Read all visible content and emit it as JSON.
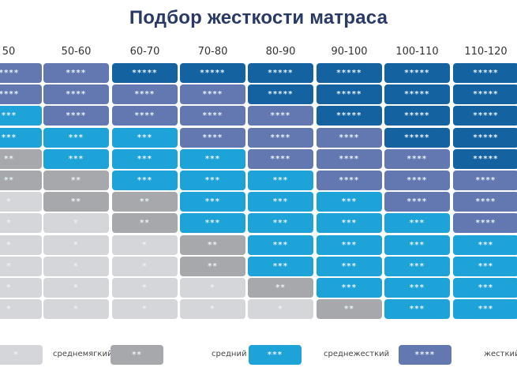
{
  "title": "Подбор жесткости матраса",
  "chart_data": {
    "type": "heatmap",
    "title": "Подбор жесткости матраса",
    "xlabel": "",
    "ylabel": "",
    "categories": [
      "50",
      "50-60",
      "60-70",
      "70-80",
      "80-90",
      "90-100",
      "100-110",
      "110-120"
    ],
    "rows": 12,
    "values_by_column": [
      [
        4,
        4,
        3,
        3,
        2,
        2,
        1,
        1,
        1,
        1,
        1,
        1
      ],
      [
        4,
        4,
        4,
        3,
        3,
        2,
        2,
        1,
        1,
        1,
        1,
        1
      ],
      [
        5,
        4,
        4,
        3,
        3,
        3,
        2,
        2,
        1,
        1,
        1,
        1
      ],
      [
        5,
        4,
        4,
        4,
        3,
        3,
        3,
        3,
        2,
        2,
        1,
        1
      ],
      [
        5,
        5,
        4,
        4,
        4,
        3,
        3,
        3,
        3,
        3,
        2,
        1
      ],
      [
        5,
        5,
        5,
        4,
        4,
        4,
        3,
        3,
        3,
        3,
        3,
        2
      ],
      [
        5,
        5,
        5,
        5,
        4,
        4,
        4,
        3,
        3,
        3,
        3,
        3
      ],
      [
        5,
        5,
        5,
        5,
        5,
        4,
        4,
        4,
        3,
        3,
        3,
        3
      ]
    ],
    "legend": [
      {
        "level": 1,
        "label": "",
        "stars": "*",
        "color": "#d5d6d9"
      },
      {
        "level": 2,
        "label": "среднемягкий",
        "stars": "**",
        "color": "#a7a8ab"
      },
      {
        "level": 3,
        "label": "средний",
        "stars": "***",
        "color": "#1ea3d9"
      },
      {
        "level": 4,
        "label": "среднежесткий",
        "stars": "****",
        "color": "#6378b0"
      },
      {
        "level": 5,
        "label": "жесткий",
        "stars": "*****",
        "color": "#14629f"
      }
    ]
  },
  "legend": {
    "items": [
      {
        "label": "",
        "stars": "*"
      },
      {
        "label": "среднемягкий",
        "stars": "**"
      },
      {
        "label": "средний",
        "stars": "***"
      },
      {
        "label": "среднежесткий",
        "stars": "****"
      },
      {
        "label": "жесткий",
        "stars": "*****"
      }
    ]
  }
}
